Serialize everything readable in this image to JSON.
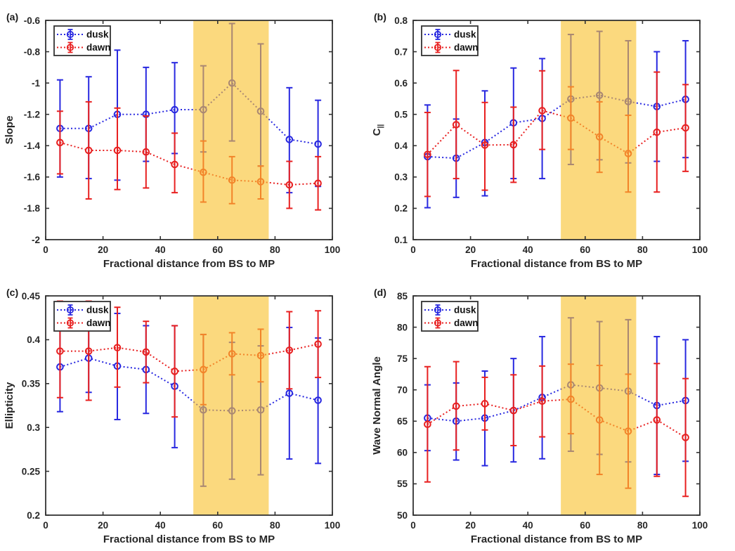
{
  "figure_title": "",
  "legend": {
    "items": [
      "dusk",
      "dawn"
    ]
  },
  "colors": {
    "dusk": "#2828E0",
    "dawn": "#E82020",
    "band": "#F8C22F",
    "band_alpha": 0.62,
    "text": "#262626",
    "frame": "#333333",
    "legend_text": "#111111"
  },
  "chart_data": [
    {
      "id": "a",
      "panel_label": "(a)",
      "type": "line",
      "subtype": "errorbar",
      "xlabel": "Fractional distance from BS to MP",
      "ylabel": "Slope",
      "ylabel_sub": "",
      "xlim": [
        0,
        100
      ],
      "ylim": [
        -2,
        -0.6
      ],
      "xticks": [
        0,
        20,
        40,
        60,
        80,
        100
      ],
      "xtick_labels": [
        "0",
        "20",
        "40",
        "60",
        "80",
        "100"
      ],
      "yticks": [
        -2,
        -1.8,
        -1.6,
        -1.4,
        -1.2,
        -1,
        -0.8,
        -0.6
      ],
      "ytick_labels": [
        "-2",
        "-1.8",
        "-1.6",
        "-1.4",
        "-1.2",
        "-1",
        "-0.8",
        "-0.6"
      ],
      "highlight_band_x": [
        51.5,
        77.8
      ],
      "legend_position": "top-left",
      "grid": false,
      "x": [
        5,
        15,
        25,
        35,
        45,
        55,
        65,
        75,
        85,
        95
      ],
      "series": [
        {
          "name": "dusk",
          "y": [
            -1.29,
            -1.29,
            -1.2,
            -1.2,
            -1.17,
            -1.17,
            -1.0,
            -1.18,
            -1.36,
            -1.39
          ],
          "y_hi": [
            -0.98,
            -0.96,
            -0.79,
            -0.9,
            -0.87,
            -0.89,
            -0.62,
            -0.75,
            -1.03,
            -1.11
          ],
          "y_lo": [
            -1.6,
            -1.61,
            -1.62,
            -1.5,
            -1.45,
            -1.44,
            -1.37,
            -1.53,
            -1.7,
            -1.66
          ]
        },
        {
          "name": "dawn",
          "y": [
            -1.38,
            -1.43,
            -1.43,
            -1.44,
            -1.52,
            -1.57,
            -1.62,
            -1.63,
            -1.65,
            -1.64
          ],
          "y_hi": [
            -1.18,
            -1.12,
            -1.16,
            -1.21,
            -1.32,
            -1.37,
            -1.47,
            -1.53,
            -1.5,
            -1.47
          ],
          "y_lo": [
            -1.58,
            -1.74,
            -1.68,
            -1.67,
            -1.7,
            -1.76,
            -1.77,
            -1.74,
            -1.8,
            -1.81
          ]
        }
      ]
    },
    {
      "id": "b",
      "panel_label": "(b)",
      "type": "line",
      "subtype": "errorbar",
      "xlabel": "Fractional distance from BS to MP",
      "ylabel": "C",
      "ylabel_sub": "||",
      "xlim": [
        0,
        100
      ],
      "ylim": [
        0.1,
        0.8
      ],
      "xticks": [
        0,
        20,
        40,
        60,
        80,
        100
      ],
      "xtick_labels": [
        "0",
        "20",
        "40",
        "60",
        "80",
        "100"
      ],
      "yticks": [
        0.1,
        0.2,
        0.3,
        0.4,
        0.5,
        0.6,
        0.7,
        0.8
      ],
      "ytick_labels": [
        "0.1",
        "0.2",
        "0.3",
        "0.4",
        "0.5",
        "0.6",
        "0.7",
        "0.8"
      ],
      "highlight_band_x": [
        51.5,
        77.8
      ],
      "legend_position": "top-left",
      "grid": false,
      "x": [
        5,
        15,
        25,
        35,
        45,
        55,
        65,
        75,
        85,
        95
      ],
      "series": [
        {
          "name": "dusk",
          "y": [
            0.365,
            0.36,
            0.41,
            0.473,
            0.487,
            0.549,
            0.561,
            0.541,
            0.525,
            0.548
          ],
          "y_hi": [
            0.53,
            0.485,
            0.575,
            0.648,
            0.678,
            0.755,
            0.765,
            0.735,
            0.7,
            0.735
          ],
          "y_lo": [
            0.202,
            0.235,
            0.24,
            0.295,
            0.295,
            0.34,
            0.355,
            0.345,
            0.35,
            0.362
          ]
        },
        {
          "name": "dawn",
          "y": [
            0.372,
            0.467,
            0.402,
            0.403,
            0.512,
            0.488,
            0.428,
            0.375,
            0.443,
            0.457
          ],
          "y_hi": [
            0.506,
            0.64,
            0.538,
            0.523,
            0.639,
            0.588,
            0.54,
            0.497,
            0.635,
            0.595
          ],
          "y_lo": [
            0.238,
            0.295,
            0.258,
            0.283,
            0.388,
            0.388,
            0.315,
            0.252,
            0.252,
            0.318
          ]
        }
      ]
    },
    {
      "id": "c",
      "panel_label": "(c)",
      "type": "line",
      "subtype": "errorbar",
      "xlabel": "Fractional distance from BS to MP",
      "ylabel": "Ellipticity",
      "ylabel_sub": "",
      "xlim": [
        0,
        100
      ],
      "ylim": [
        0.2,
        0.45
      ],
      "xticks": [
        0,
        20,
        40,
        60,
        80,
        100
      ],
      "xtick_labels": [
        "0",
        "20",
        "40",
        "60",
        "80",
        "100"
      ],
      "yticks": [
        0.2,
        0.25,
        0.3,
        0.35,
        0.4,
        0.45
      ],
      "ytick_labels": [
        "0.2",
        "0.25",
        "0.3",
        "0.35",
        "0.4",
        "0.45"
      ],
      "highlight_band_x": [
        51.5,
        77.8
      ],
      "legend_position": "top-left",
      "grid": false,
      "x": [
        5,
        15,
        25,
        35,
        45,
        55,
        65,
        75,
        85,
        95
      ],
      "series": [
        {
          "name": "dusk",
          "y": [
            0.369,
            0.379,
            0.37,
            0.366,
            0.347,
            0.32,
            0.319,
            0.32,
            0.339,
            0.331
          ],
          "y_hi": [
            0.413,
            0.417,
            0.43,
            0.416,
            0.416,
            0.406,
            0.397,
            0.393,
            0.414,
            0.402
          ],
          "y_lo": [
            0.318,
            0.34,
            0.309,
            0.316,
            0.277,
            0.233,
            0.241,
            0.246,
            0.264,
            0.259
          ]
        },
        {
          "name": "dawn",
          "y": [
            0.387,
            0.387,
            0.391,
            0.386,
            0.364,
            0.366,
            0.384,
            0.382,
            0.388,
            0.395
          ],
          "y_hi": [
            0.444,
            0.444,
            0.437,
            0.421,
            0.416,
            0.406,
            0.408,
            0.412,
            0.432,
            0.433
          ],
          "y_lo": [
            0.334,
            0.331,
            0.346,
            0.351,
            0.312,
            0.326,
            0.36,
            0.352,
            0.344,
            0.357
          ]
        }
      ]
    },
    {
      "id": "d",
      "panel_label": "(d)",
      "type": "line",
      "subtype": "errorbar",
      "xlabel": "Fractional distance from BS to MP",
      "ylabel": "Wave Normal Angle",
      "ylabel_sub": "",
      "xlim": [
        0,
        100
      ],
      "ylim": [
        50,
        85
      ],
      "xticks": [
        0,
        20,
        40,
        60,
        80,
        100
      ],
      "xtick_labels": [
        "0",
        "20",
        "40",
        "60",
        "80",
        "100"
      ],
      "yticks": [
        50,
        55,
        60,
        65,
        70,
        75,
        80,
        85
      ],
      "ytick_labels": [
        "50",
        "55",
        "60",
        "65",
        "70",
        "75",
        "80",
        "85"
      ],
      "highlight_band_x": [
        51.5,
        77.8
      ],
      "legend_position": "top-left",
      "grid": false,
      "x": [
        5,
        15,
        25,
        35,
        45,
        55,
        65,
        75,
        85,
        95
      ],
      "series": [
        {
          "name": "dusk",
          "y": [
            65.5,
            65.0,
            65.5,
            66.7,
            68.8,
            70.8,
            70.3,
            69.8,
            67.5,
            68.3
          ],
          "y_hi": [
            70.8,
            71.1,
            73.0,
            75.0,
            78.5,
            81.5,
            80.9,
            81.2,
            78.5,
            78.0
          ],
          "y_lo": [
            60.3,
            58.8,
            57.9,
            58.5,
            59.0,
            60.2,
            59.7,
            58.5,
            56.5,
            58.6
          ]
        },
        {
          "name": "dawn",
          "y": [
            64.5,
            67.4,
            67.8,
            66.7,
            68.2,
            68.5,
            65.2,
            63.4,
            65.2,
            62.4
          ],
          "y_hi": [
            73.7,
            74.5,
            72.0,
            72.4,
            73.8,
            74.1,
            73.9,
            72.5,
            74.2,
            71.8
          ],
          "y_lo": [
            55.3,
            60.4,
            63.6,
            61.1,
            62.5,
            63.0,
            56.5,
            54.3,
            56.2,
            53.0
          ]
        }
      ]
    }
  ]
}
